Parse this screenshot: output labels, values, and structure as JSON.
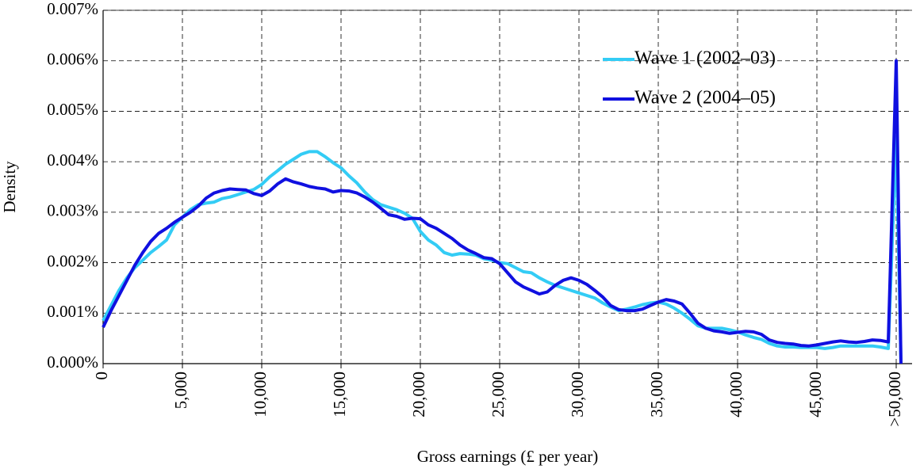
{
  "chart_data": {
    "type": "line",
    "x_label": "Gross earnings (£ per year)",
    "y_label": "Density",
    "x": [
      0,
      500,
      1000,
      1500,
      2000,
      2500,
      3000,
      3500,
      4000,
      4500,
      5000,
      5500,
      6000,
      6500,
      7000,
      7500,
      8000,
      8500,
      9000,
      9500,
      10000,
      10500,
      11000,
      11500,
      12000,
      12500,
      13000,
      13500,
      14000,
      14500,
      15000,
      15500,
      16000,
      16500,
      17000,
      17500,
      18000,
      18500,
      19000,
      19500,
      20000,
      20500,
      21000,
      21500,
      22000,
      22500,
      23000,
      23500,
      24000,
      24500,
      25000,
      25500,
      26000,
      26500,
      27000,
      27500,
      28000,
      28500,
      29000,
      29500,
      30000,
      30500,
      31000,
      31500,
      32000,
      32500,
      33000,
      33500,
      34000,
      34500,
      35000,
      35500,
      36000,
      36500,
      37000,
      37500,
      38000,
      38500,
      39000,
      39500,
      40000,
      40500,
      41000,
      41500,
      42000,
      42500,
      43000,
      43500,
      44000,
      44500,
      45000,
      45500,
      46000,
      46500,
      47000,
      47500,
      48000,
      48500,
      49000,
      49500,
      50000,
      50300
    ],
    "series": [
      {
        "name": "Wave 1 (2002–03)",
        "color": "#33ccf5",
        "values": [
          0.00085,
          0.00115,
          0.00145,
          0.0017,
          0.0019,
          0.00205,
          0.0022,
          0.00232,
          0.00245,
          0.00275,
          0.0029,
          0.00305,
          0.00315,
          0.00318,
          0.0032,
          0.00327,
          0.0033,
          0.00335,
          0.0034,
          0.00345,
          0.00355,
          0.0037,
          0.00382,
          0.00395,
          0.00405,
          0.00415,
          0.0042,
          0.0042,
          0.0041,
          0.00398,
          0.00388,
          0.00372,
          0.00358,
          0.0034,
          0.00325,
          0.00315,
          0.0031,
          0.00305,
          0.00298,
          0.00288,
          0.00262,
          0.00245,
          0.00235,
          0.0022,
          0.00215,
          0.00218,
          0.00217,
          0.00215,
          0.00208,
          0.00205,
          0.002,
          0.00198,
          0.0019,
          0.00182,
          0.0018,
          0.0017,
          0.00162,
          0.00155,
          0.0015,
          0.00145,
          0.0014,
          0.00135,
          0.0013,
          0.0012,
          0.00112,
          0.00105,
          0.00108,
          0.00112,
          0.00117,
          0.0012,
          0.00122,
          0.00118,
          0.0011,
          0.001,
          0.00088,
          0.00075,
          0.0007,
          0.0007,
          0.0007,
          0.00067,
          0.00063,
          0.00057,
          0.00052,
          0.00048,
          0.0004,
          0.00035,
          0.00033,
          0.00033,
          0.00032,
          0.00032,
          0.00032,
          0.0003,
          0.00032,
          0.00035,
          0.00035,
          0.00035,
          0.00035,
          0.00035,
          0.00033,
          0.0003,
          0.0045,
          0
        ]
      },
      {
        "name": "Wave 2 (2004–05)",
        "color": "#1010e0",
        "values": [
          0.00072,
          0.00105,
          0.00135,
          0.00165,
          0.00195,
          0.0022,
          0.00242,
          0.00258,
          0.00268,
          0.0028,
          0.0029,
          0.003,
          0.00312,
          0.00328,
          0.00338,
          0.00343,
          0.00346,
          0.00345,
          0.00344,
          0.00337,
          0.00333,
          0.00342,
          0.00356,
          0.00366,
          0.0036,
          0.00356,
          0.00351,
          0.00348,
          0.00346,
          0.0034,
          0.00343,
          0.00342,
          0.00338,
          0.0033,
          0.0032,
          0.00308,
          0.00295,
          0.00292,
          0.00286,
          0.00288,
          0.00287,
          0.00275,
          0.00268,
          0.00258,
          0.00248,
          0.00235,
          0.00225,
          0.00218,
          0.0021,
          0.00208,
          0.00198,
          0.0018,
          0.00162,
          0.00152,
          0.00145,
          0.00138,
          0.00142,
          0.00155,
          0.00165,
          0.0017,
          0.00165,
          0.00157,
          0.00145,
          0.00132,
          0.00115,
          0.00107,
          0.00105,
          0.00105,
          0.00108,
          0.00115,
          0.00122,
          0.00127,
          0.00124,
          0.00118,
          0.001,
          0.0008,
          0.0007,
          0.00065,
          0.00063,
          0.0006,
          0.00062,
          0.00064,
          0.00063,
          0.00058,
          0.00047,
          0.00042,
          0.0004,
          0.00039,
          0.00036,
          0.00035,
          0.00037,
          0.0004,
          0.00043,
          0.00045,
          0.00043,
          0.00042,
          0.00044,
          0.00047,
          0.00046,
          0.00043,
          0.006,
          0
        ]
      }
    ],
    "xlim": [
      0,
      51000
    ],
    "ylim": [
      0,
      0.007
    ],
    "xticks": [
      0,
      {
        "value": 5000,
        "label": "5,000"
      },
      {
        "value": 10000,
        "label": "10,000"
      },
      {
        "value": 15000,
        "label": "15,000"
      },
      {
        "value": 20000,
        "label": "20,000"
      },
      {
        "value": 25000,
        "label": "25,000"
      },
      {
        "value": 30000,
        "label": "30,000"
      },
      {
        "value": 35000,
        "label": "35,000"
      },
      {
        "value": 40000,
        "label": "40,000"
      },
      {
        "value": 45000,
        "label": "45,000"
      },
      {
        "value": 50000,
        "label": ">50,000"
      }
    ],
    "yticks": [
      {
        "value": 0,
        "label": "0.000%"
      },
      {
        "value": 0.001,
        "label": "0.001%"
      },
      {
        "value": 0.002,
        "label": "0.002%"
      },
      {
        "value": 0.003,
        "label": "0.003%"
      },
      {
        "value": 0.004,
        "label": "0.004%"
      },
      {
        "value": 0.005,
        "label": "0.005%"
      },
      {
        "value": 0.006,
        "label": "0.006%"
      },
      {
        "value": 0.007,
        "label": "0.007%"
      }
    ],
    "grid": true,
    "legend": "top-right"
  }
}
